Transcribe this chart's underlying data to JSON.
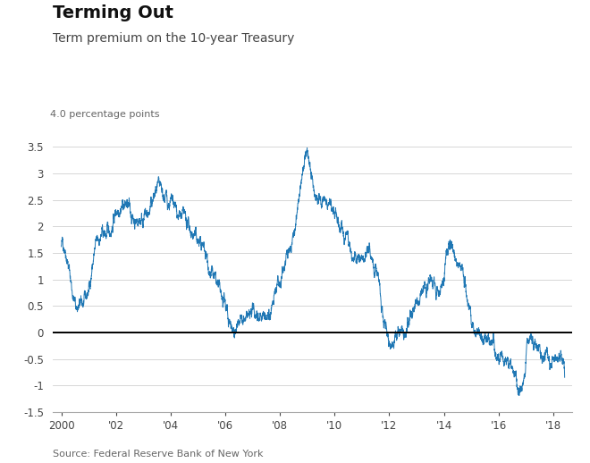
{
  "title": "Terming Out",
  "subtitle": "Term premium on the 10-year Treasury",
  "ylabel_top": "4.0 percentage points",
  "source": "Source: Federal Reserve Bank of New York",
  "line_color": "#1f77b4",
  "background_color": "#ffffff",
  "ylim": [
    -1.5,
    4.0
  ],
  "yticks": [
    -1.5,
    -1.0,
    -0.5,
    0,
    0.5,
    1.0,
    1.5,
    2.0,
    2.5,
    3.0,
    3.5
  ],
  "xtick_labels": [
    "2000",
    "'02",
    "'04",
    "'06",
    "'08",
    "'10",
    "'12",
    "'14",
    "'16",
    "'18"
  ],
  "zero_line_color": "#000000",
  "grid_color": "#d0d0d0",
  "title_fontsize": 14,
  "subtitle_fontsize": 10,
  "ylabel_fontsize": 8,
  "tick_fontsize": 8.5,
  "source_fontsize": 8
}
